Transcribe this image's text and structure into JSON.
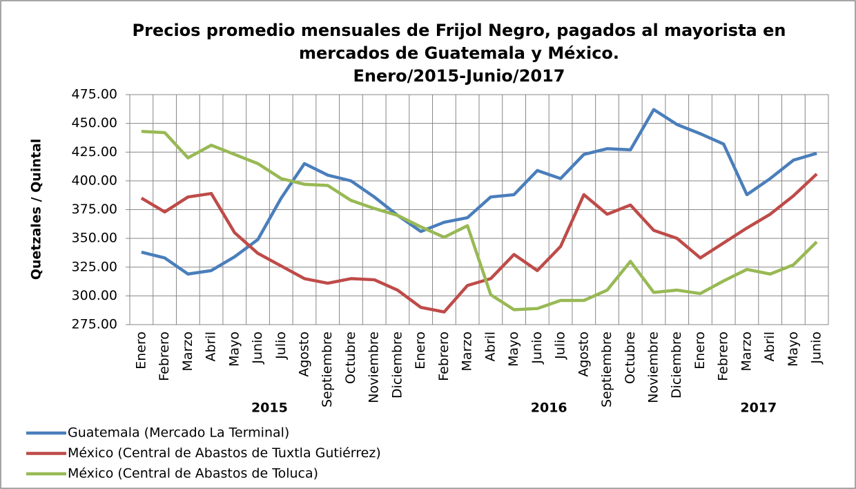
{
  "chart_data": {
    "type": "line",
    "title": [
      "Precios promedio mensuales de Frijol Negro, pagados al mayorista en",
      "mercados de Guatemala y México.",
      "Enero/2015-Junio/2017"
    ],
    "y_label": "Quetzales / Quintal",
    "categories": [
      "Enero",
      "Febrero",
      "Marzo",
      "Abril",
      "Mayo",
      "Junio",
      "Julio",
      "Agosto",
      "Septiembre",
      "Octubre",
      "Noviembre",
      "Diciembre",
      "Enero",
      "Febrero",
      "Marzo",
      "Abril",
      "Mayo",
      "Junio",
      "Julio",
      "Agosto",
      "Septiembre",
      "Octubre",
      "Noviembre",
      "Diciembre",
      "Enero",
      "Febrero",
      "Marzo",
      "Abril",
      "Mayo",
      "Junio"
    ],
    "years": [
      "2015",
      "2016",
      "2017"
    ],
    "series": [
      {
        "name": "Guatemala (Mercado La Terminal)",
        "color": "#4a7ebb",
        "values": [
          338,
          333,
          319,
          322,
          334,
          349,
          385,
          415,
          405,
          400,
          386,
          370,
          356,
          364,
          368,
          386,
          388,
          409,
          402,
          423,
          428,
          427,
          462,
          449,
          441,
          432,
          388,
          402,
          418,
          424
        ]
      },
      {
        "name": "México (Central de Abastos de Tuxtla Gutiérrez)",
        "color": "#be4b48",
        "values": [
          385,
          373,
          386,
          389,
          355,
          337,
          326,
          315,
          311,
          315,
          314,
          305,
          290,
          286,
          309,
          315,
          336,
          322,
          343,
          388,
          371,
          379,
          357,
          350,
          333,
          346,
          359,
          371,
          387,
          406
        ]
      },
      {
        "name": "México (Central de Abastos de Toluca)",
        "color": "#98b954",
        "values": [
          443,
          442,
          420,
          431,
          423,
          415,
          402,
          397,
          396,
          383,
          376,
          370,
          360,
          351,
          361,
          301,
          288,
          289,
          296,
          296,
          305,
          330,
          303,
          305,
          302,
          313,
          323,
          319,
          327,
          347
        ]
      }
    ],
    "ylim": [
      275,
      475
    ],
    "yticks": [
      {
        "value": 275,
        "label": "275.00"
      },
      {
        "value": 300,
        "label": "300.00"
      },
      {
        "value": 325,
        "label": "325.00"
      },
      {
        "value": 350,
        "label": "350.00"
      },
      {
        "value": 375,
        "label": "375.00"
      },
      {
        "value": 400,
        "label": "400.00"
      },
      {
        "value": 425,
        "label": "425.00"
      },
      {
        "value": 450,
        "label": "450.00"
      },
      {
        "value": 475,
        "label": "475.00"
      }
    ],
    "grid": true
  }
}
